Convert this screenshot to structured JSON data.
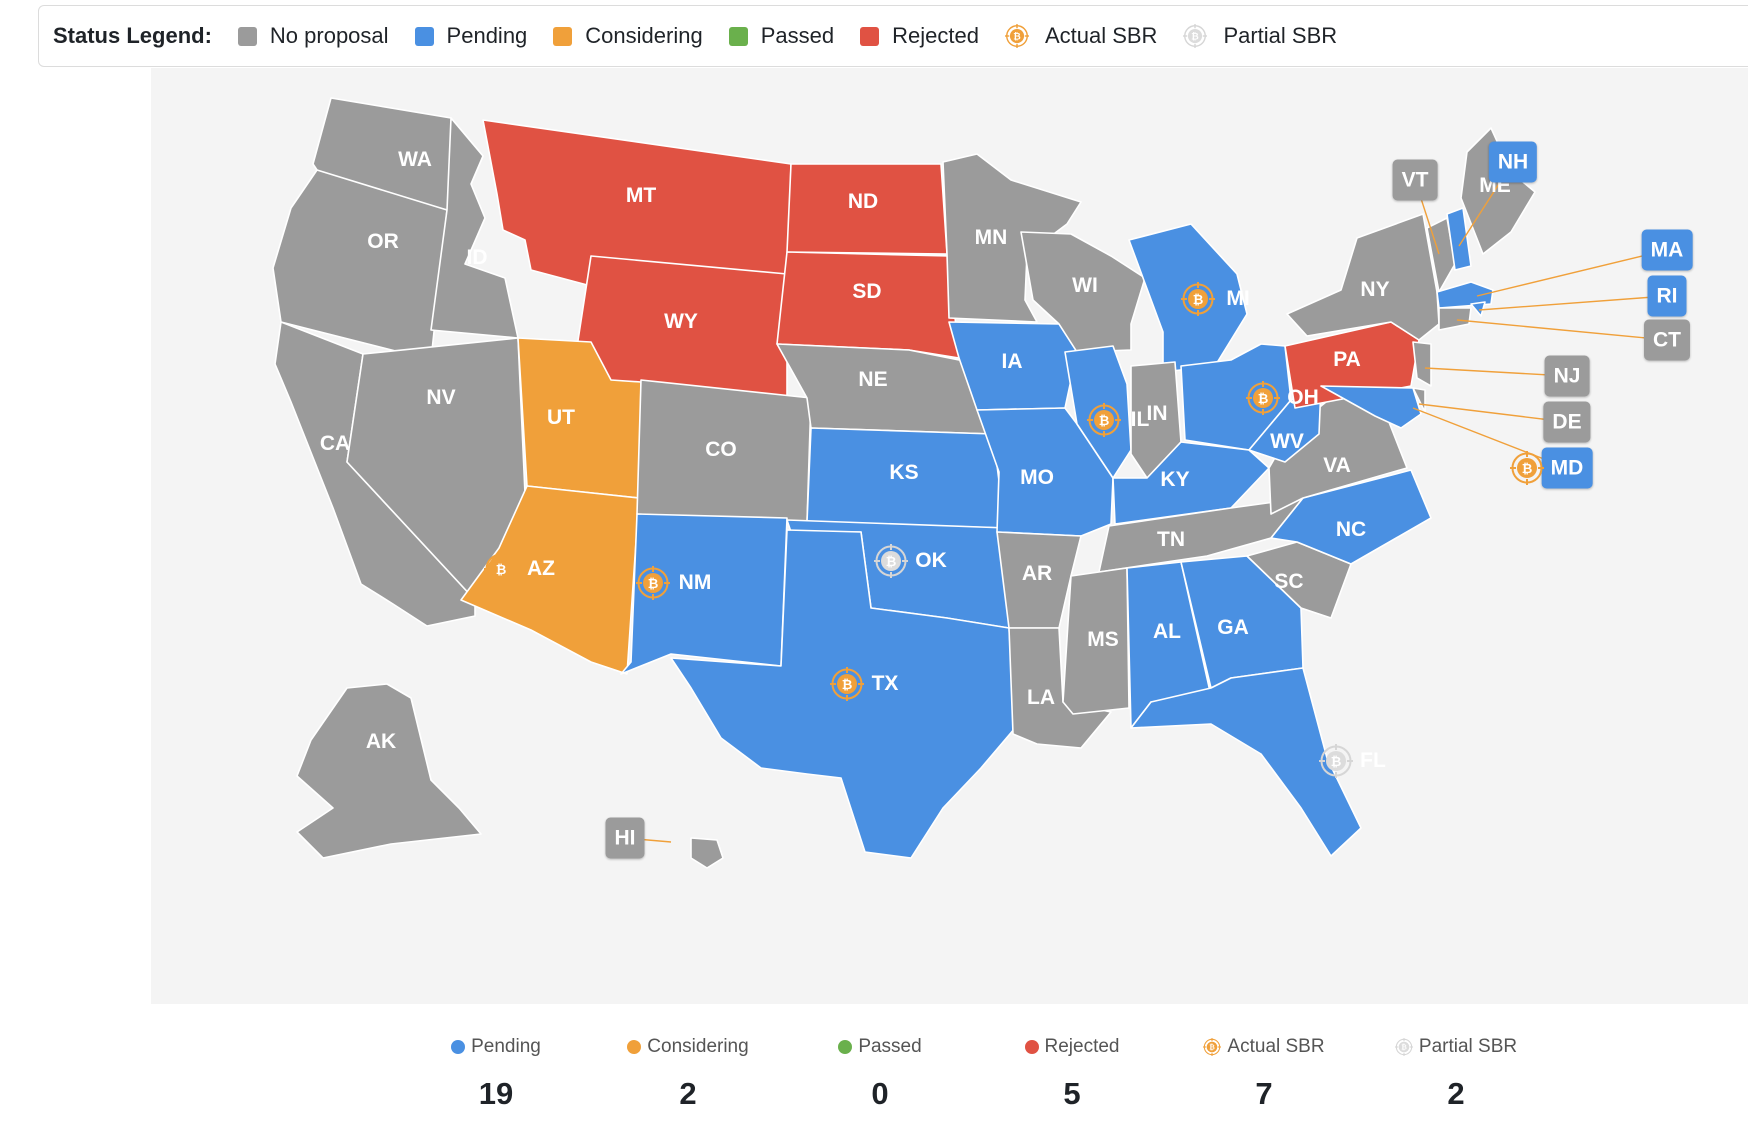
{
  "legend": {
    "title": "Status Legend:",
    "items": [
      {
        "label": "No proposal",
        "kind": "swatch",
        "color": "#9b9b9b"
      },
      {
        "label": "Pending",
        "kind": "swatch",
        "color": "#4a90e2"
      },
      {
        "label": "Considering",
        "kind": "swatch",
        "color": "#f0a03a"
      },
      {
        "label": "Passed",
        "kind": "swatch",
        "color": "#6ab04c"
      },
      {
        "label": "Rejected",
        "kind": "swatch",
        "color": "#e05243"
      },
      {
        "label": "Actual SBR",
        "kind": "actual-sbr-icon",
        "color": "#f0a03a"
      },
      {
        "label": "Partial SBR",
        "kind": "partial-sbr-icon",
        "color": "#d8d8d8"
      }
    ]
  },
  "colors": {
    "no_proposal": "#9b9b9b",
    "pending": "#4a90e2",
    "considering": "#f0a03a",
    "passed": "#6ab04c",
    "rejected": "#e05243",
    "panel_bg": "#f4f4f4"
  },
  "map": {
    "states": [
      {
        "code": "WA",
        "status": "none"
      },
      {
        "code": "OR",
        "status": "none"
      },
      {
        "code": "CA",
        "status": "none"
      },
      {
        "code": "ID",
        "status": "none"
      },
      {
        "code": "NV",
        "status": "none"
      },
      {
        "code": "MT",
        "status": "rejected"
      },
      {
        "code": "WY",
        "status": "rejected"
      },
      {
        "code": "UT",
        "status": "considering"
      },
      {
        "code": "AZ",
        "status": "considering",
        "sbr": "actual"
      },
      {
        "code": "CO",
        "status": "none"
      },
      {
        "code": "NM",
        "status": "pending",
        "sbr": "actual"
      },
      {
        "code": "ND",
        "status": "rejected"
      },
      {
        "code": "SD",
        "status": "rejected"
      },
      {
        "code": "NE",
        "status": "none"
      },
      {
        "code": "KS",
        "status": "pending"
      },
      {
        "code": "OK",
        "status": "pending",
        "sbr": "partial"
      },
      {
        "code": "TX",
        "status": "pending",
        "sbr": "actual"
      },
      {
        "code": "MN",
        "status": "none"
      },
      {
        "code": "IA",
        "status": "pending"
      },
      {
        "code": "MO",
        "status": "pending"
      },
      {
        "code": "AR",
        "status": "none"
      },
      {
        "code": "LA",
        "status": "none"
      },
      {
        "code": "WI",
        "status": "none"
      },
      {
        "code": "IL",
        "status": "pending",
        "sbr": "actual"
      },
      {
        "code": "MI",
        "status": "pending",
        "sbr": "actual"
      },
      {
        "code": "IN",
        "status": "none"
      },
      {
        "code": "OH",
        "status": "pending",
        "sbr": "actual"
      },
      {
        "code": "KY",
        "status": "pending"
      },
      {
        "code": "TN",
        "status": "none"
      },
      {
        "code": "MS",
        "status": "none"
      },
      {
        "code": "AL",
        "status": "pending"
      },
      {
        "code": "GA",
        "status": "pending"
      },
      {
        "code": "FL",
        "status": "pending",
        "sbr": "partial"
      },
      {
        "code": "SC",
        "status": "none"
      },
      {
        "code": "NC",
        "status": "pending"
      },
      {
        "code": "VA",
        "status": "none"
      },
      {
        "code": "WV",
        "status": "pending"
      },
      {
        "code": "PA",
        "status": "rejected"
      },
      {
        "code": "NY",
        "status": "none"
      },
      {
        "code": "ME",
        "status": "none"
      },
      {
        "code": "AK",
        "status": "none"
      },
      {
        "code": "VT",
        "status": "none"
      },
      {
        "code": "NH",
        "status": "pending"
      },
      {
        "code": "MA",
        "status": "pending"
      },
      {
        "code": "RI",
        "status": "pending"
      },
      {
        "code": "CT",
        "status": "none"
      },
      {
        "code": "NJ",
        "status": "none"
      },
      {
        "code": "DE",
        "status": "none"
      },
      {
        "code": "MD",
        "status": "pending",
        "sbr": "actual"
      },
      {
        "code": "HI",
        "status": "none"
      }
    ]
  },
  "stats": [
    {
      "label": "Pending",
      "value": "19",
      "marker": "dot",
      "color": "#4a90e2"
    },
    {
      "label": "Considering",
      "value": "2",
      "marker": "dot",
      "color": "#f0a03a"
    },
    {
      "label": "Passed",
      "value": "0",
      "marker": "dot",
      "color": "#6ab04c"
    },
    {
      "label": "Rejected",
      "value": "5",
      "marker": "dot",
      "color": "#e05243"
    },
    {
      "label": "Actual SBR",
      "value": "7",
      "marker": "actual-sbr-icon",
      "color": "#f0a03a"
    },
    {
      "label": "Partial SBR",
      "value": "2",
      "marker": "partial-sbr-icon",
      "color": "#d8d8d8"
    }
  ]
}
